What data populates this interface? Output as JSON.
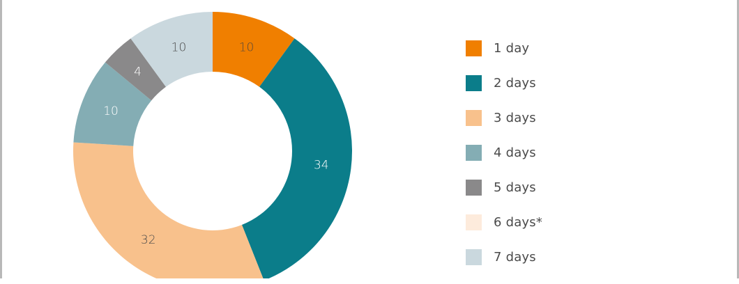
{
  "chart_data": {
    "type": "pie",
    "variant": "donut",
    "title": "",
    "categories": [
      "1 day",
      "2 days",
      "3 days",
      "4 days",
      "5 days",
      "6 days*",
      "7 days"
    ],
    "values": [
      10,
      34,
      32,
      10,
      4,
      0,
      10
    ],
    "labels_shown": [
      "10",
      "34",
      "32",
      "10",
      "4",
      "",
      "10"
    ],
    "colors": [
      "#f07f00",
      "#0b7d8a",
      "#f8c18c",
      "#84adb4",
      "#8a898a",
      "#fdebdc",
      "#cad8de"
    ],
    "label_colors": [
      "#5a4a3a",
      "#ffffff",
      "#4a4a4a",
      "#ffffff",
      "#ffffff",
      "#4a4a4a",
      "#4a4a4a"
    ],
    "start_angle_deg": 0,
    "direction": "clockwise",
    "legend_position": "right"
  },
  "legend": {
    "items": [
      {
        "label": "1 day",
        "color": "#f07f00"
      },
      {
        "label": "2 days",
        "color": "#0b7d8a"
      },
      {
        "label": "3 days",
        "color": "#f8c18c"
      },
      {
        "label": "4 days",
        "color": "#84adb4"
      },
      {
        "label": "5 days",
        "color": "#8a898a"
      },
      {
        "label": "6 days*",
        "color": "#fdebdc"
      },
      {
        "label": "7 days",
        "color": "#cad8de"
      }
    ]
  }
}
